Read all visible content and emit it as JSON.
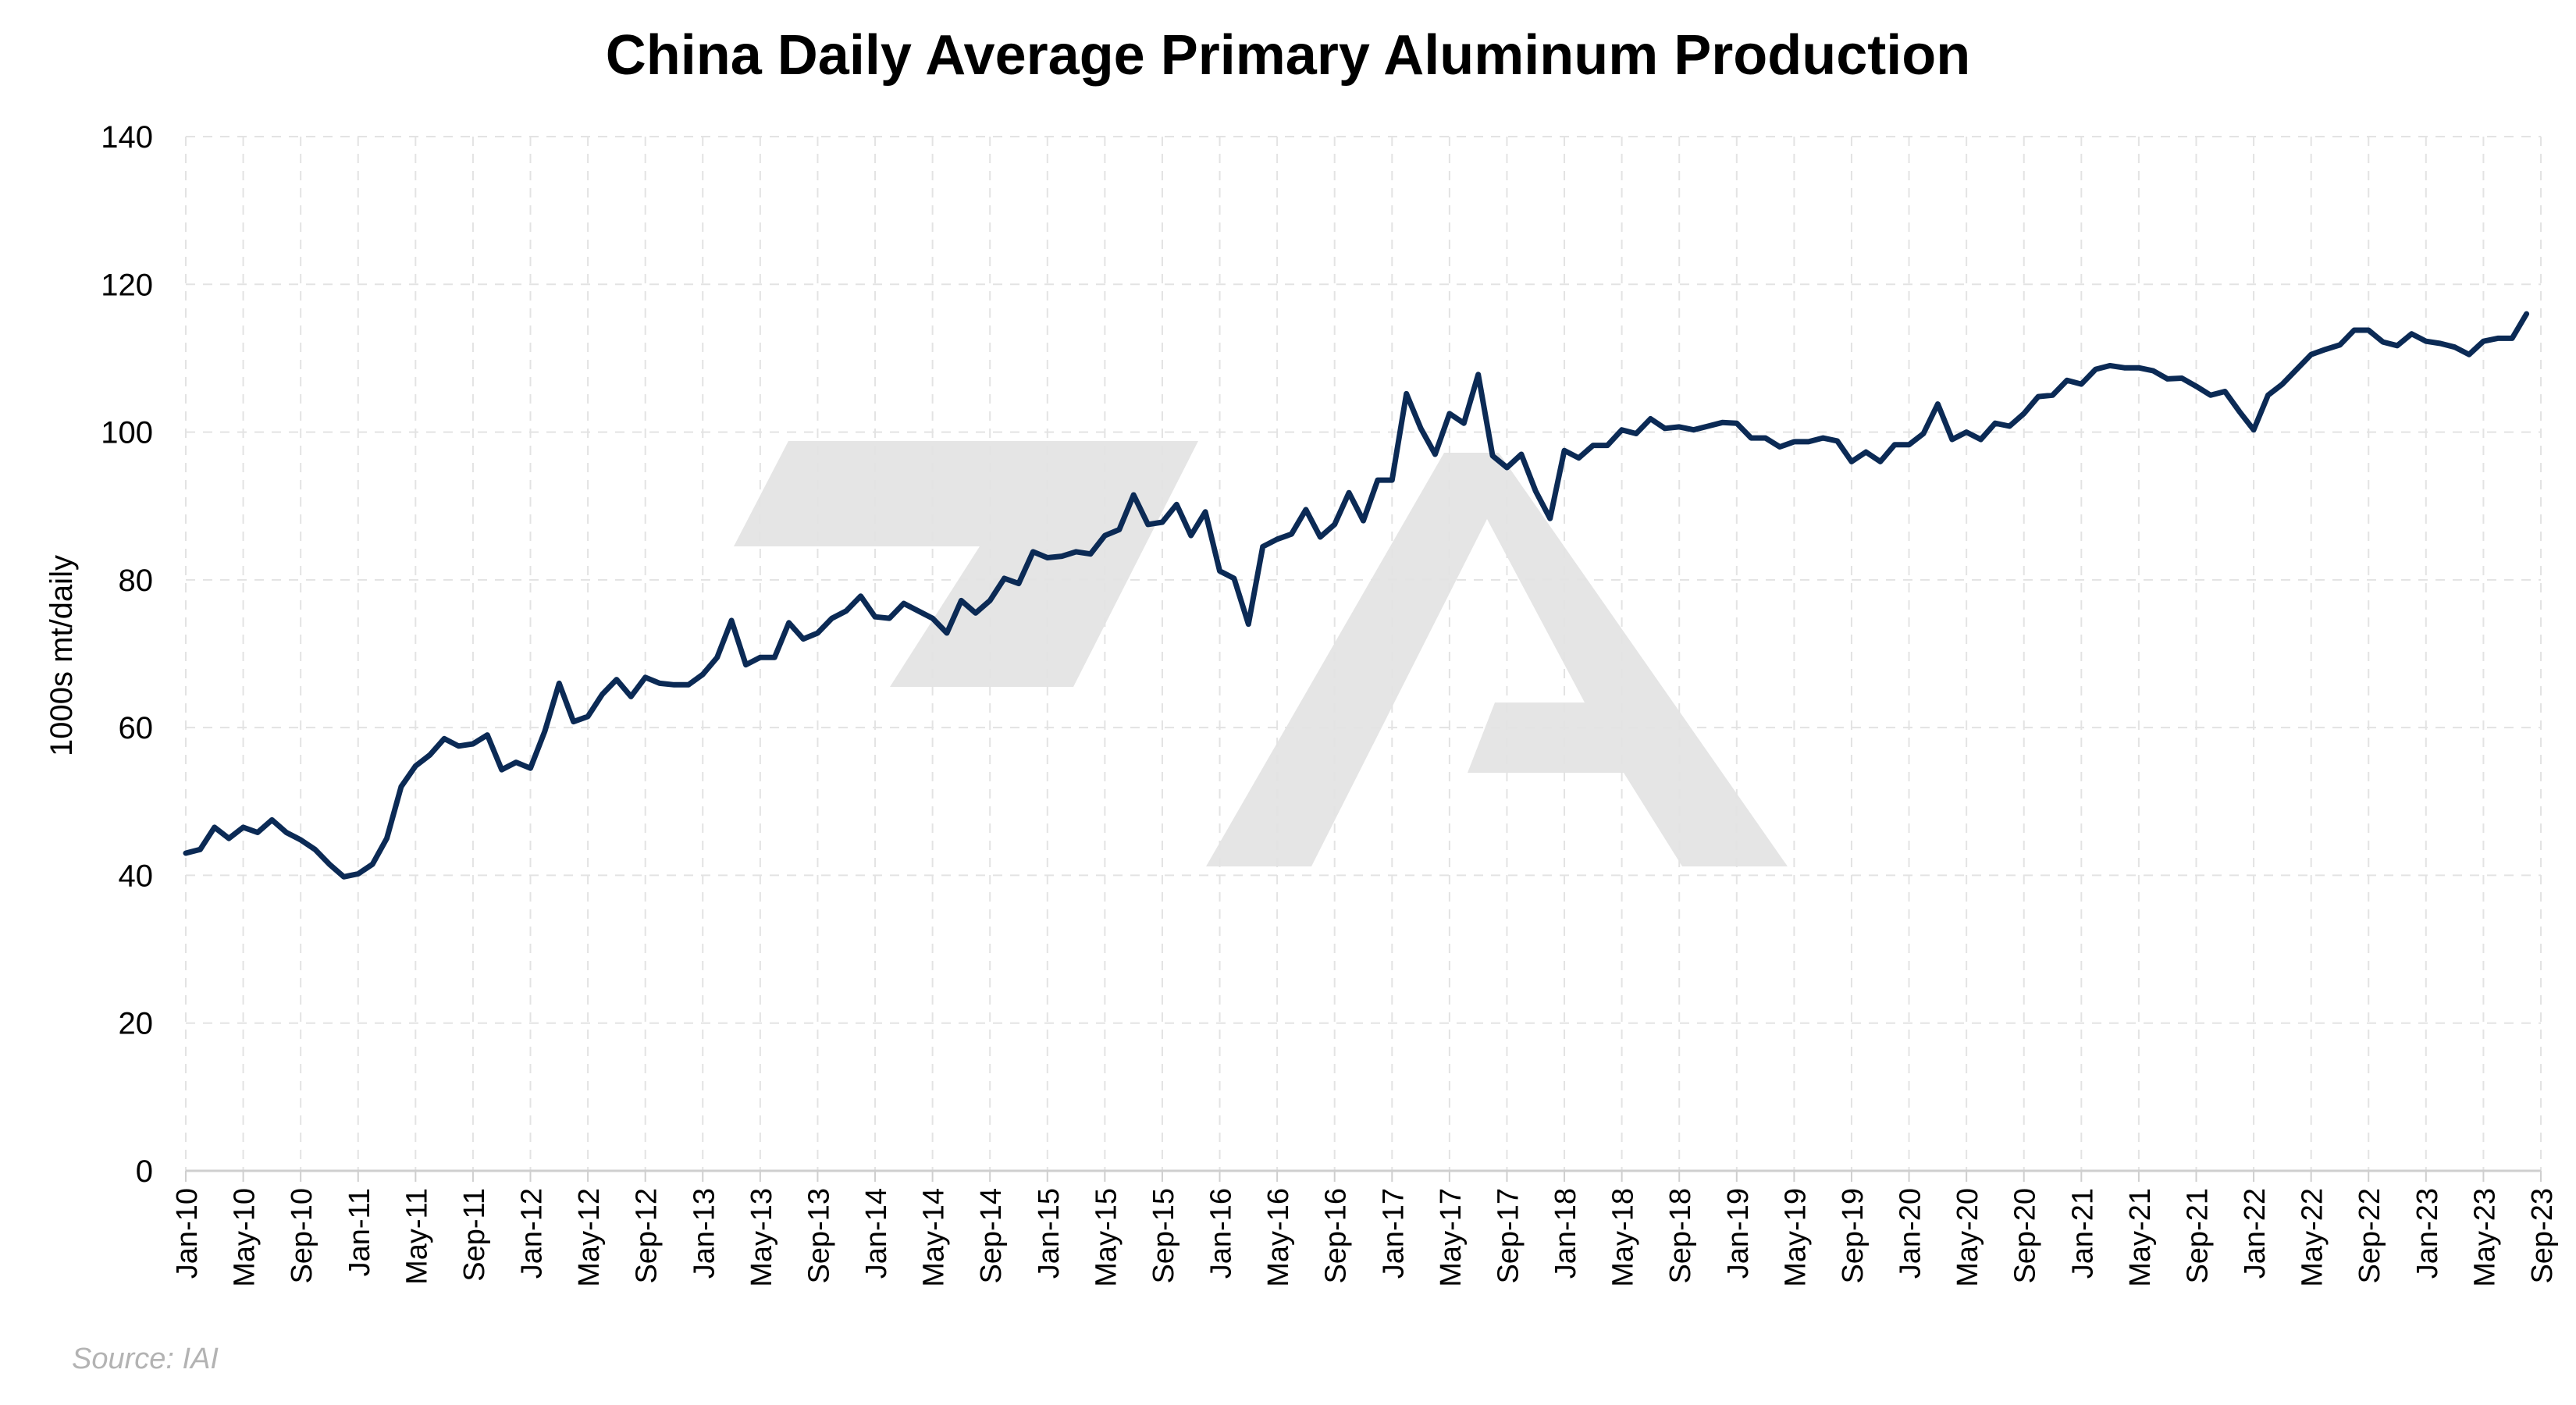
{
  "chart_data": {
    "type": "line",
    "title": "China Daily Average Primary Aluminum Production",
    "ylabel": "1000s mt/daily",
    "xlabel": "",
    "source": "Source: IAI",
    "ylim": [
      0,
      140
    ],
    "y_ticks": [
      0,
      20,
      40,
      60,
      80,
      100,
      120,
      140
    ],
    "grid": true,
    "x_start": "Jan-10",
    "x_end": "Sep-23",
    "x_tick_labels": [
      "Jan-10",
      "May-10",
      "Sep-10",
      "Jan-11",
      "May-11",
      "Sep-11",
      "Jan-12",
      "May-12",
      "Sep-12",
      "Jan-13",
      "May-13",
      "Sep-13",
      "Jan-14",
      "May-14",
      "Sep-14",
      "Jan-15",
      "May-15",
      "Sep-15",
      "Jan-16",
      "May-16",
      "Sep-16",
      "Jan-17",
      "May-17",
      "Sep-17",
      "Jan-18",
      "May-18",
      "Sep-18",
      "Jan-19",
      "May-19",
      "Sep-19",
      "Jan-20",
      "May-20",
      "Sep-20",
      "Jan-21",
      "May-21",
      "Sep-21",
      "Jan-22",
      "May-22",
      "Sep-22",
      "Jan-23",
      "May-23",
      "Sep-23"
    ],
    "series": [
      {
        "color": "#0b2a55",
        "points": [
          [
            "Jan-10",
            43.0
          ],
          [
            "Feb-10",
            43.5
          ],
          [
            "Mar-10",
            46.5
          ],
          [
            "Apr-10",
            45.0
          ],
          [
            "May-10",
            46.5
          ],
          [
            "Jun-10",
            45.8
          ],
          [
            "Jul-10",
            47.5
          ],
          [
            "Aug-10",
            45.8
          ],
          [
            "Sep-10",
            44.8
          ],
          [
            "Oct-10",
            43.5
          ],
          [
            "Nov-10",
            41.5
          ],
          [
            "Dec-10",
            39.8
          ],
          [
            "Jan-11",
            40.2
          ],
          [
            "Feb-11",
            41.5
          ],
          [
            "Mar-11",
            45.0
          ],
          [
            "Apr-11",
            52.0
          ],
          [
            "May-11",
            54.8
          ],
          [
            "Jun-11",
            56.3
          ],
          [
            "Jul-11",
            58.5
          ],
          [
            "Aug-11",
            57.5
          ],
          [
            "Sep-11",
            57.8
          ],
          [
            "Oct-11",
            59.0
          ],
          [
            "Nov-11",
            54.3
          ],
          [
            "Dec-11",
            55.3
          ],
          [
            "Jan-12",
            54.5
          ],
          [
            "Feb-12",
            59.5
          ],
          [
            "Mar-12",
            66.0
          ],
          [
            "Apr-12",
            60.8
          ],
          [
            "May-12",
            61.5
          ],
          [
            "Jun-12",
            64.5
          ],
          [
            "Jul-12",
            66.5
          ],
          [
            "Aug-12",
            64.2
          ],
          [
            "Sep-12",
            66.8
          ],
          [
            "Oct-12",
            66.0
          ],
          [
            "Nov-12",
            65.8
          ],
          [
            "Dec-12",
            65.8
          ],
          [
            "Jan-13",
            67.2
          ],
          [
            "Feb-13",
            69.5
          ],
          [
            "Mar-13",
            74.5
          ],
          [
            "Apr-13",
            68.5
          ],
          [
            "May-13",
            69.5
          ],
          [
            "Jun-13",
            69.5
          ],
          [
            "Jul-13",
            74.2
          ],
          [
            "Aug-13",
            72.0
          ],
          [
            "Sep-13",
            72.8
          ],
          [
            "Oct-13",
            74.8
          ],
          [
            "Nov-13",
            75.8
          ],
          [
            "Dec-13",
            77.8
          ],
          [
            "Jan-14",
            75.0
          ],
          [
            "Feb-14",
            74.8
          ],
          [
            "Mar-14",
            76.8
          ],
          [
            "Apr-14",
            75.8
          ],
          [
            "May-14",
            74.8
          ],
          [
            "Jun-14",
            72.8
          ],
          [
            "Jul-14",
            77.2
          ],
          [
            "Aug-14",
            75.5
          ],
          [
            "Sep-14",
            77.2
          ],
          [
            "Oct-14",
            80.2
          ],
          [
            "Nov-14",
            79.5
          ],
          [
            "Dec-14",
            83.8
          ],
          [
            "Jan-15",
            83.0
          ],
          [
            "Feb-15",
            83.2
          ],
          [
            "Mar-15",
            83.8
          ],
          [
            "Apr-15",
            83.5
          ],
          [
            "May-15",
            86.0
          ],
          [
            "Jun-15",
            86.8
          ],
          [
            "Jul-15",
            91.5
          ],
          [
            "Aug-15",
            87.5
          ],
          [
            "Sep-15",
            87.8
          ],
          [
            "Oct-15",
            90.2
          ],
          [
            "Nov-15",
            86.0
          ],
          [
            "Dec-15",
            89.2
          ],
          [
            "Jan-16",
            81.2
          ],
          [
            "Feb-16",
            80.2
          ],
          [
            "Mar-16",
            74.0
          ],
          [
            "Apr-16",
            84.5
          ],
          [
            "May-16",
            85.5
          ],
          [
            "Jun-16",
            86.2
          ],
          [
            "Jul-16",
            89.5
          ],
          [
            "Aug-16",
            85.8
          ],
          [
            "Sep-16",
            87.5
          ],
          [
            "Oct-16",
            91.8
          ],
          [
            "Nov-16",
            88.0
          ],
          [
            "Dec-16",
            93.5
          ],
          [
            "Jan-17",
            93.5
          ],
          [
            "Feb-17",
            105.2
          ],
          [
            "Mar-17",
            100.5
          ],
          [
            "Apr-17",
            97.0
          ],
          [
            "May-17",
            102.5
          ],
          [
            "Jun-17",
            101.2
          ],
          [
            "Jul-17",
            107.8
          ],
          [
            "Aug-17",
            96.8
          ],
          [
            "Sep-17",
            95.2
          ],
          [
            "Oct-17",
            97.0
          ],
          [
            "Nov-17",
            92.0
          ],
          [
            "Dec-17",
            88.3
          ],
          [
            "Jan-18",
            97.5
          ],
          [
            "Feb-18",
            96.5
          ],
          [
            "Mar-18",
            98.2
          ],
          [
            "Apr-18",
            98.2
          ],
          [
            "May-18",
            100.3
          ],
          [
            "Jun-18",
            99.8
          ],
          [
            "Jul-18",
            101.8
          ],
          [
            "Aug-18",
            100.5
          ],
          [
            "Sep-18",
            100.7
          ],
          [
            "Oct-18",
            100.3
          ],
          [
            "Nov-18",
            100.8
          ],
          [
            "Dec-18",
            101.3
          ],
          [
            "Jan-19",
            101.2
          ],
          [
            "Feb-19",
            99.2
          ],
          [
            "Mar-19",
            99.2
          ],
          [
            "Apr-19",
            98.0
          ],
          [
            "May-19",
            98.7
          ],
          [
            "Jun-19",
            98.7
          ],
          [
            "Jul-19",
            99.2
          ],
          [
            "Aug-19",
            98.8
          ],
          [
            "Sep-19",
            96.0
          ],
          [
            "Oct-19",
            97.3
          ],
          [
            "Nov-19",
            96.0
          ],
          [
            "Dec-19",
            98.3
          ],
          [
            "Jan-20",
            98.3
          ],
          [
            "Feb-20",
            99.8
          ],
          [
            "Mar-20",
            103.8
          ],
          [
            "Apr-20",
            99.0
          ],
          [
            "May-20",
            100.0
          ],
          [
            "Jun-20",
            99.0
          ],
          [
            "Jul-20",
            101.2
          ],
          [
            "Aug-20",
            100.8
          ],
          [
            "Sep-20",
            102.5
          ],
          [
            "Oct-20",
            104.8
          ],
          [
            "Nov-20",
            105.0
          ],
          [
            "Dec-20",
            107.0
          ],
          [
            "Jan-21",
            106.5
          ],
          [
            "Feb-21",
            108.5
          ],
          [
            "Mar-21",
            109.0
          ],
          [
            "Apr-21",
            108.7
          ],
          [
            "May-21",
            108.7
          ],
          [
            "Jun-21",
            108.3
          ],
          [
            "Jul-21",
            107.2
          ],
          [
            "Aug-21",
            107.3
          ],
          [
            "Sep-21",
            106.2
          ],
          [
            "Oct-21",
            105.0
          ],
          [
            "Nov-21",
            105.5
          ],
          [
            "Dec-21",
            102.8
          ],
          [
            "Jan-22",
            100.3
          ],
          [
            "Feb-22",
            105.0
          ],
          [
            "Mar-22",
            106.5
          ],
          [
            "Apr-22",
            108.5
          ],
          [
            "May-22",
            110.5
          ],
          [
            "Jun-22",
            111.2
          ],
          [
            "Jul-22",
            111.8
          ],
          [
            "Aug-22",
            113.8
          ],
          [
            "Sep-22",
            113.8
          ],
          [
            "Oct-22",
            112.2
          ],
          [
            "Nov-22",
            111.7
          ],
          [
            "Dec-22",
            113.3
          ],
          [
            "Jan-23",
            112.3
          ],
          [
            "Feb-23",
            112.0
          ],
          [
            "Mar-23",
            111.5
          ],
          [
            "Apr-23",
            110.5
          ],
          [
            "May-23",
            112.3
          ],
          [
            "Jun-23",
            112.7
          ],
          [
            "Jul-23",
            112.7
          ],
          [
            "Aug-23",
            116.0
          ]
        ]
      }
    ]
  },
  "colors": {
    "line": "#0b2a55",
    "grid": "#e3e3e3",
    "axis": "#cfcfcf",
    "watermark": "#e5e5e5",
    "source_text": "#b3b3b3"
  }
}
